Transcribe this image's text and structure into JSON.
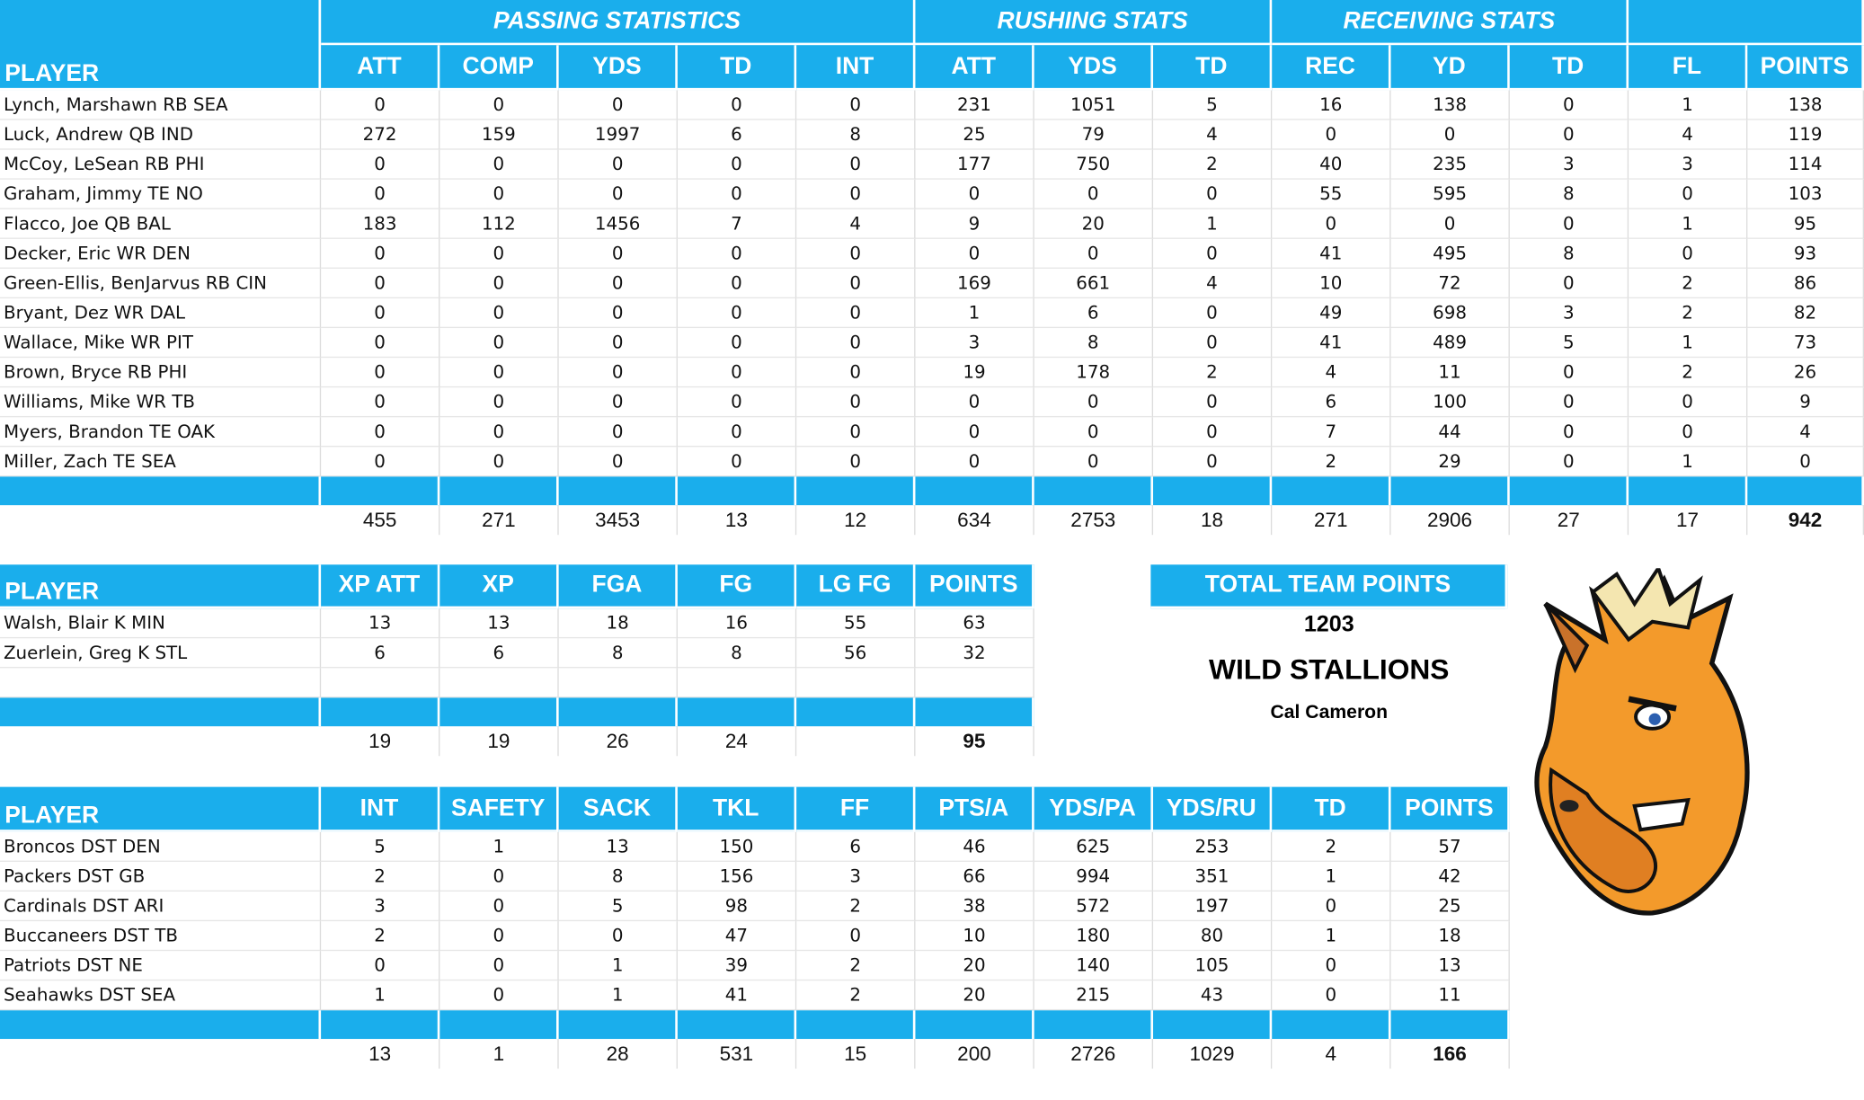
{
  "offense": {
    "groups": [
      "PASSING STATISTICS",
      "RUSHING STATS",
      "RECEIVING STATS"
    ],
    "columns": [
      "PLAYER",
      "ATT",
      "COMP",
      "YDS",
      "TD",
      "INT",
      "ATT",
      "YDS",
      "TD",
      "REC",
      "YD",
      "TD",
      "FL",
      "POINTS"
    ],
    "rows": [
      [
        "Lynch, Marshawn RB SEA",
        0,
        0,
        0,
        0,
        0,
        231,
        1051,
        5,
        16,
        138,
        0,
        1,
        138
      ],
      [
        "Luck, Andrew QB IND",
        272,
        159,
        1997,
        6,
        8,
        25,
        79,
        4,
        0,
        0,
        0,
        4,
        119
      ],
      [
        "McCoy, LeSean RB PHI",
        0,
        0,
        0,
        0,
        0,
        177,
        750,
        2,
        40,
        235,
        3,
        3,
        114
      ],
      [
        "Graham, Jimmy TE NO",
        0,
        0,
        0,
        0,
        0,
        0,
        0,
        0,
        55,
        595,
        8,
        0,
        103
      ],
      [
        "Flacco, Joe QB BAL",
        183,
        112,
        1456,
        7,
        4,
        9,
        20,
        1,
        0,
        0,
        0,
        1,
        95
      ],
      [
        "Decker, Eric WR DEN",
        0,
        0,
        0,
        0,
        0,
        0,
        0,
        0,
        41,
        495,
        8,
        0,
        93
      ],
      [
        "Green-Ellis, BenJarvus RB CIN",
        0,
        0,
        0,
        0,
        0,
        169,
        661,
        4,
        10,
        72,
        0,
        2,
        86
      ],
      [
        "Bryant, Dez WR DAL",
        0,
        0,
        0,
        0,
        0,
        1,
        6,
        0,
        49,
        698,
        3,
        2,
        82
      ],
      [
        "Wallace, Mike WR PIT",
        0,
        0,
        0,
        0,
        0,
        3,
        8,
        0,
        41,
        489,
        5,
        1,
        73
      ],
      [
        "Brown, Bryce RB PHI",
        0,
        0,
        0,
        0,
        0,
        19,
        178,
        2,
        4,
        11,
        0,
        2,
        26
      ],
      [
        "Williams, Mike WR TB",
        0,
        0,
        0,
        0,
        0,
        0,
        0,
        0,
        6,
        100,
        0,
        0,
        9
      ],
      [
        "Myers, Brandon TE OAK",
        0,
        0,
        0,
        0,
        0,
        0,
        0,
        0,
        7,
        44,
        0,
        0,
        4
      ],
      [
        "Miller, Zach TE SEA",
        0,
        0,
        0,
        0,
        0,
        0,
        0,
        0,
        2,
        29,
        0,
        1,
        0
      ]
    ],
    "totals": [
      455,
      271,
      3453,
      13,
      12,
      634,
      2753,
      18,
      271,
      2906,
      27,
      17,
      942
    ]
  },
  "kickers": {
    "columns": [
      "PLAYER",
      "XP ATT",
      "XP",
      "FGA",
      "FG",
      "LG FG",
      "POINTS"
    ],
    "rows": [
      [
        "Walsh, Blair K MIN",
        13,
        13,
        18,
        16,
        55,
        63
      ],
      [
        "Zuerlein, Greg K STL",
        6,
        6,
        8,
        8,
        56,
        32
      ]
    ],
    "totals": [
      19,
      19,
      26,
      24,
      null,
      95
    ]
  },
  "team": {
    "header": "TOTAL TEAM POINTS",
    "points": "1203",
    "name": "WILD STALLIONS",
    "owner": "Cal Cameron"
  },
  "defense": {
    "columns": [
      "PLAYER",
      "INT",
      "SAFETY",
      "SACK",
      "TKL",
      "FF",
      "PTS/A",
      "YDS/PA",
      "YDS/RU",
      "TD",
      "POINTS"
    ],
    "rows": [
      [
        "Broncos DST DEN",
        5,
        1,
        13,
        150,
        6,
        46,
        625,
        253,
        2,
        57
      ],
      [
        "Packers DST GB",
        2,
        0,
        8,
        156,
        3,
        66,
        994,
        351,
        1,
        42
      ],
      [
        "Cardinals DST ARI",
        3,
        0,
        5,
        98,
        2,
        38,
        572,
        197,
        0,
        25
      ],
      [
        "Buccaneers DST TB",
        2,
        0,
        0,
        47,
        0,
        10,
        180,
        80,
        1,
        18
      ],
      [
        "Patriots DST NE",
        0,
        0,
        1,
        39,
        2,
        20,
        140,
        105,
        0,
        13
      ],
      [
        "Seahawks DST SEA",
        1,
        0,
        1,
        41,
        2,
        20,
        215,
        43,
        0,
        11
      ]
    ],
    "totals": [
      13,
      1,
      28,
      531,
      15,
      200,
      2726,
      1029,
      4,
      166
    ]
  }
}
